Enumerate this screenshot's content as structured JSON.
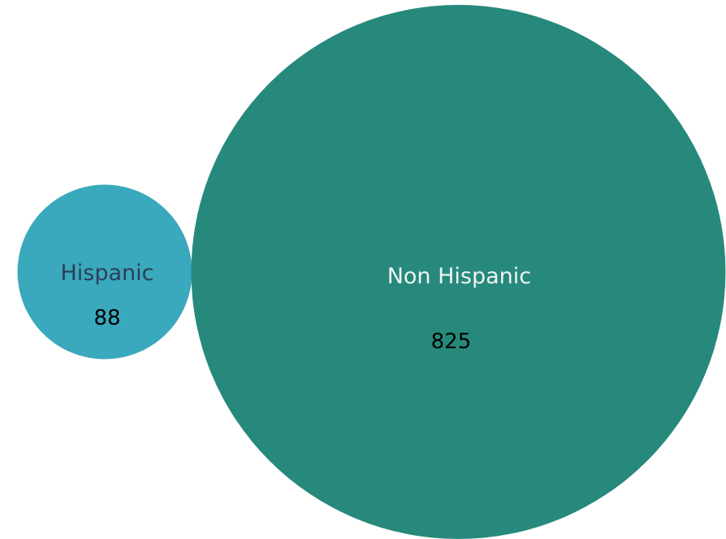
{
  "chart_data": {
    "type": "bubble",
    "categories": [
      "Hispanic",
      "Non Hispanic"
    ],
    "values": [
      88,
      825
    ],
    "series": [
      {
        "category": "Hispanic",
        "value": 88,
        "color": "#3aa8bd",
        "label_color": "#2b3f57"
      },
      {
        "category": "Non Hispanic",
        "value": 825,
        "color": "#27897b",
        "label_color": "#eef3f2"
      }
    ]
  }
}
